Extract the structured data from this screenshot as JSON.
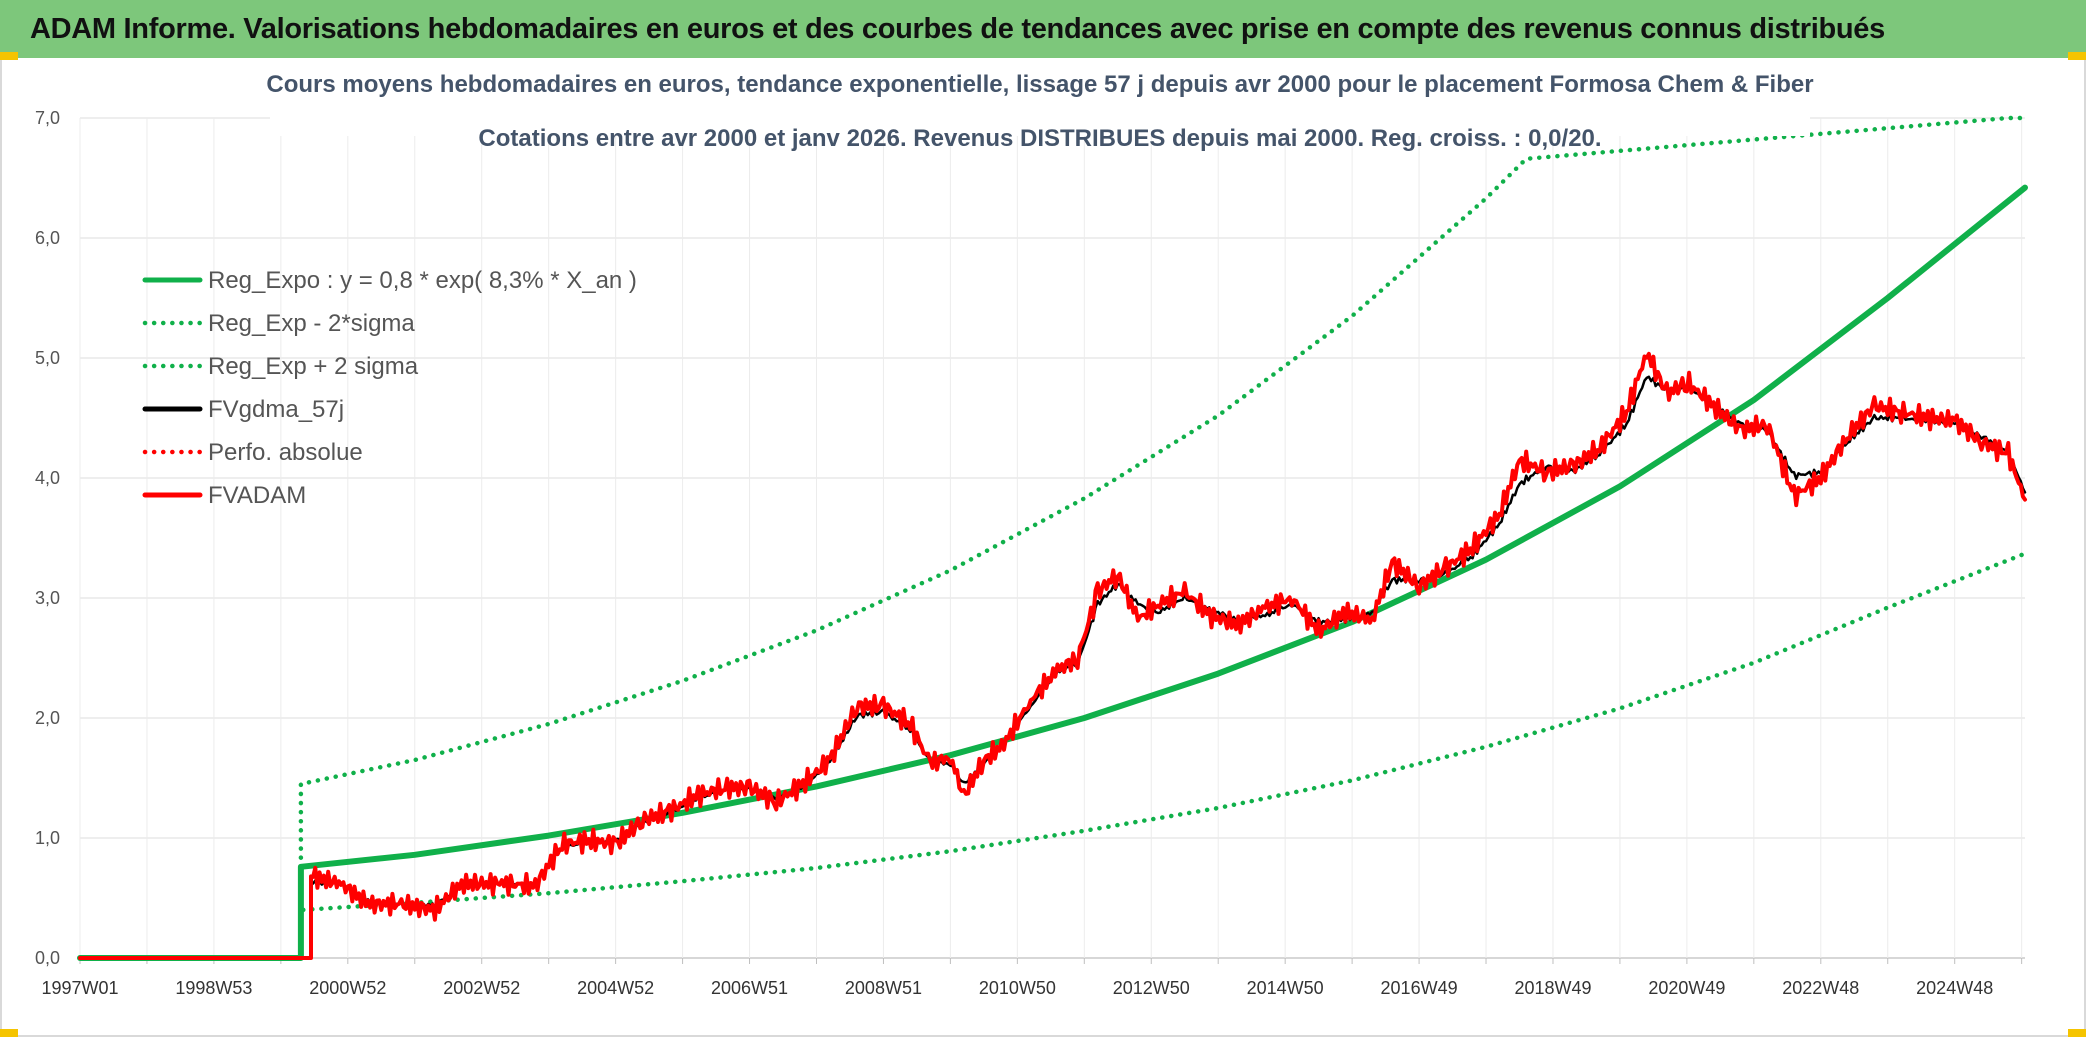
{
  "banner": {
    "title": "ADAM Informe. Valorisations hebdomadaires en euros et des courbes de tendances avec prise en compte des revenus connus distribués"
  },
  "chart_data": {
    "type": "line",
    "title": "Cours moyens hebdomadaires en euros, tendance exponentielle, lissage 57 j depuis avr 2000 pour le placement Formosa Chem & Fiber",
    "subtitle": "Cotations entre avr 2000 et janv 2026. Revenus DISTRIBUES depuis mai 2000. Reg. croiss. : 0,0/20.",
    "xlabel": "",
    "ylabel": "",
    "xlim": [
      1997.0,
      2026.05
    ],
    "ylim": [
      0,
      7
    ],
    "yticks": [
      "0,0",
      "1,0",
      "2,0",
      "3,0",
      "4,0",
      "5,0",
      "6,0",
      "7,0"
    ],
    "xticks": [
      {
        "label": "1997W01",
        "x": 1997.0
      },
      {
        "label": "1998W53",
        "x": 1999.0
      },
      {
        "label": "2000W52",
        "x": 2001.0
      },
      {
        "label": "2002W52",
        "x": 2003.0
      },
      {
        "label": "2004W52",
        "x": 2005.0
      },
      {
        "label": "2006W51",
        "x": 2007.0
      },
      {
        "label": "2008W51",
        "x": 2009.0
      },
      {
        "label": "2010W50",
        "x": 2011.0
      },
      {
        "label": "2012W50",
        "x": 2013.0
      },
      {
        "label": "2014W50",
        "x": 2015.0
      },
      {
        "label": "2016W49",
        "x": 2017.0
      },
      {
        "label": "2018W49",
        "x": 2019.0
      },
      {
        "label": "2020W49",
        "x": 2021.0
      },
      {
        "label": "2022W48",
        "x": 2023.0
      },
      {
        "label": "2024W48",
        "x": 2025.0
      }
    ],
    "grid": true,
    "legend_position": "top-left",
    "start_x": 2000.3,
    "series": [
      {
        "name": "Reg_Expo : y = 0,8 * exp( 8,3% *  X_an )",
        "color": "#10b04a",
        "style": "solid",
        "points": [
          [
            1997.0,
            0
          ],
          [
            2000.3,
            0
          ],
          [
            2000.3,
            0.76
          ],
          [
            2002,
            0.86
          ],
          [
            2004,
            1.02
          ],
          [
            2006,
            1.21
          ],
          [
            2008,
            1.43
          ],
          [
            2010,
            1.69
          ],
          [
            2012,
            2.0
          ],
          [
            2014,
            2.37
          ],
          [
            2016,
            2.8
          ],
          [
            2018,
            3.32
          ],
          [
            2020,
            3.93
          ],
          [
            2022,
            4.65
          ],
          [
            2024,
            5.5
          ],
          [
            2026.05,
            6.42
          ]
        ]
      },
      {
        "name": "Reg_Exp - 2*sigma",
        "color": "#10b04a",
        "style": "dotted",
        "points": [
          [
            2000.3,
            0.76
          ],
          [
            2000.3,
            0.4
          ],
          [
            2002,
            0.46
          ],
          [
            2004,
            0.54
          ],
          [
            2006,
            0.64
          ],
          [
            2008,
            0.75
          ],
          [
            2010,
            0.89
          ],
          [
            2012,
            1.06
          ],
          [
            2014,
            1.25
          ],
          [
            2016,
            1.48
          ],
          [
            2018,
            1.76
          ],
          [
            2020,
            2.08
          ],
          [
            2022,
            2.46
          ],
          [
            2024,
            2.92
          ],
          [
            2026.05,
            3.37
          ]
        ]
      },
      {
        "name": "Reg_Exp + 2 sigma",
        "color": "#10b04a",
        "style": "dotted",
        "points": [
          [
            2000.3,
            0.76
          ],
          [
            2000.3,
            1.45
          ],
          [
            2002,
            1.65
          ],
          [
            2004,
            1.95
          ],
          [
            2006,
            2.31
          ],
          [
            2008,
            2.73
          ],
          [
            2010,
            3.23
          ],
          [
            2012,
            3.83
          ],
          [
            2014,
            4.52
          ],
          [
            2016,
            5.35
          ],
          [
            2018,
            6.33
          ],
          [
            2018.6,
            6.66
          ],
          [
            2025.8,
            7.0
          ],
          [
            2026.05,
            7.0
          ]
        ]
      },
      {
        "name": "FVgdma_57j",
        "color": "#000000",
        "style": "solid",
        "points": [
          [
            2000.45,
            0.0
          ],
          [
            2000.45,
            0.62
          ],
          [
            2000.9,
            0.62
          ],
          [
            2001.3,
            0.48
          ],
          [
            2001.8,
            0.45
          ],
          [
            2002.3,
            0.44
          ],
          [
            2002.7,
            0.6
          ],
          [
            2003.3,
            0.62
          ],
          [
            2003.8,
            0.62
          ],
          [
            2004.2,
            0.92
          ],
          [
            2004.6,
            0.97
          ],
          [
            2005.0,
            0.98
          ],
          [
            2005.4,
            1.12
          ],
          [
            2005.8,
            1.2
          ],
          [
            2006.2,
            1.32
          ],
          [
            2006.6,
            1.4
          ],
          [
            2007.0,
            1.4
          ],
          [
            2007.4,
            1.34
          ],
          [
            2007.8,
            1.42
          ],
          [
            2008.2,
            1.63
          ],
          [
            2008.6,
            2.02
          ],
          [
            2009.0,
            2.05
          ],
          [
            2009.4,
            1.9
          ],
          [
            2009.7,
            1.63
          ],
          [
            2010.0,
            1.62
          ],
          [
            2010.2,
            1.45
          ],
          [
            2010.5,
            1.62
          ],
          [
            2010.8,
            1.8
          ],
          [
            2011.2,
            2.1
          ],
          [
            2011.6,
            2.38
          ],
          [
            2011.9,
            2.45
          ],
          [
            2012.2,
            2.95
          ],
          [
            2012.5,
            3.12
          ],
          [
            2012.8,
            2.95
          ],
          [
            2013.1,
            2.88
          ],
          [
            2013.5,
            3.0
          ],
          [
            2013.9,
            2.9
          ],
          [
            2014.3,
            2.82
          ],
          [
            2014.7,
            2.85
          ],
          [
            2015.1,
            2.95
          ],
          [
            2015.5,
            2.8
          ],
          [
            2015.9,
            2.82
          ],
          [
            2016.3,
            2.88
          ],
          [
            2016.6,
            3.15
          ],
          [
            2017.0,
            3.15
          ],
          [
            2017.4,
            3.2
          ],
          [
            2017.8,
            3.35
          ],
          [
            2018.2,
            3.62
          ],
          [
            2018.5,
            3.95
          ],
          [
            2018.9,
            4.1
          ],
          [
            2019.3,
            4.05
          ],
          [
            2019.7,
            4.2
          ],
          [
            2020.1,
            4.45
          ],
          [
            2020.4,
            4.85
          ],
          [
            2020.7,
            4.72
          ],
          [
            2021.0,
            4.75
          ],
          [
            2021.4,
            4.62
          ],
          [
            2021.8,
            4.45
          ],
          [
            2022.2,
            4.4
          ],
          [
            2022.6,
            4.02
          ],
          [
            2023.0,
            4.05
          ],
          [
            2023.4,
            4.3
          ],
          [
            2023.8,
            4.5
          ],
          [
            2024.2,
            4.5
          ],
          [
            2024.6,
            4.47
          ],
          [
            2025.0,
            4.45
          ],
          [
            2025.4,
            4.35
          ],
          [
            2025.8,
            4.22
          ],
          [
            2026.05,
            3.88
          ]
        ]
      },
      {
        "name": "Perfo. absolue",
        "color": "#ff0000",
        "style": "dotted",
        "points": []
      },
      {
        "name": "FVADAM",
        "color": "#ff0000",
        "style": "solid",
        "points": [
          [
            1997.0,
            0
          ],
          [
            2000.45,
            0.0
          ],
          [
            2000.45,
            0.68
          ],
          [
            2000.9,
            0.62
          ],
          [
            2001.3,
            0.45
          ],
          [
            2001.8,
            0.45
          ],
          [
            2002.3,
            0.4
          ],
          [
            2002.7,
            0.62
          ],
          [
            2003.3,
            0.62
          ],
          [
            2003.8,
            0.6
          ],
          [
            2004.2,
            0.95
          ],
          [
            2004.6,
            0.98
          ],
          [
            2005.0,
            0.95
          ],
          [
            2005.4,
            1.15
          ],
          [
            2005.8,
            1.22
          ],
          [
            2006.2,
            1.35
          ],
          [
            2006.6,
            1.42
          ],
          [
            2007.0,
            1.42
          ],
          [
            2007.4,
            1.3
          ],
          [
            2007.8,
            1.45
          ],
          [
            2008.2,
            1.65
          ],
          [
            2008.6,
            2.1
          ],
          [
            2009.0,
            2.1
          ],
          [
            2009.4,
            1.95
          ],
          [
            2009.7,
            1.62
          ],
          [
            2010.0,
            1.68
          ],
          [
            2010.2,
            1.35
          ],
          [
            2010.5,
            1.65
          ],
          [
            2010.8,
            1.78
          ],
          [
            2011.2,
            2.15
          ],
          [
            2011.6,
            2.4
          ],
          [
            2011.9,
            2.5
          ],
          [
            2012.2,
            3.05
          ],
          [
            2012.5,
            3.2
          ],
          [
            2012.8,
            2.82
          ],
          [
            2013.1,
            2.95
          ],
          [
            2013.5,
            3.05
          ],
          [
            2013.9,
            2.85
          ],
          [
            2014.3,
            2.78
          ],
          [
            2014.7,
            2.92
          ],
          [
            2015.1,
            3.0
          ],
          [
            2015.5,
            2.72
          ],
          [
            2015.9,
            2.88
          ],
          [
            2016.3,
            2.82
          ],
          [
            2016.6,
            3.3
          ],
          [
            2017.0,
            3.1
          ],
          [
            2017.4,
            3.25
          ],
          [
            2017.8,
            3.42
          ],
          [
            2018.2,
            3.7
          ],
          [
            2018.5,
            4.15
          ],
          [
            2018.9,
            4.05
          ],
          [
            2019.3,
            4.1
          ],
          [
            2019.7,
            4.25
          ],
          [
            2020.1,
            4.55
          ],
          [
            2020.4,
            5.05
          ],
          [
            2020.7,
            4.7
          ],
          [
            2021.0,
            4.8
          ],
          [
            2021.4,
            4.6
          ],
          [
            2021.8,
            4.4
          ],
          [
            2022.2,
            4.45
          ],
          [
            2022.6,
            3.85
          ],
          [
            2023.0,
            4.0
          ],
          [
            2023.4,
            4.35
          ],
          [
            2023.8,
            4.6
          ],
          [
            2024.2,
            4.55
          ],
          [
            2024.6,
            4.5
          ],
          [
            2025.0,
            4.48
          ],
          [
            2025.4,
            4.3
          ],
          [
            2025.8,
            4.2
          ],
          [
            2026.05,
            3.82
          ]
        ]
      }
    ]
  }
}
